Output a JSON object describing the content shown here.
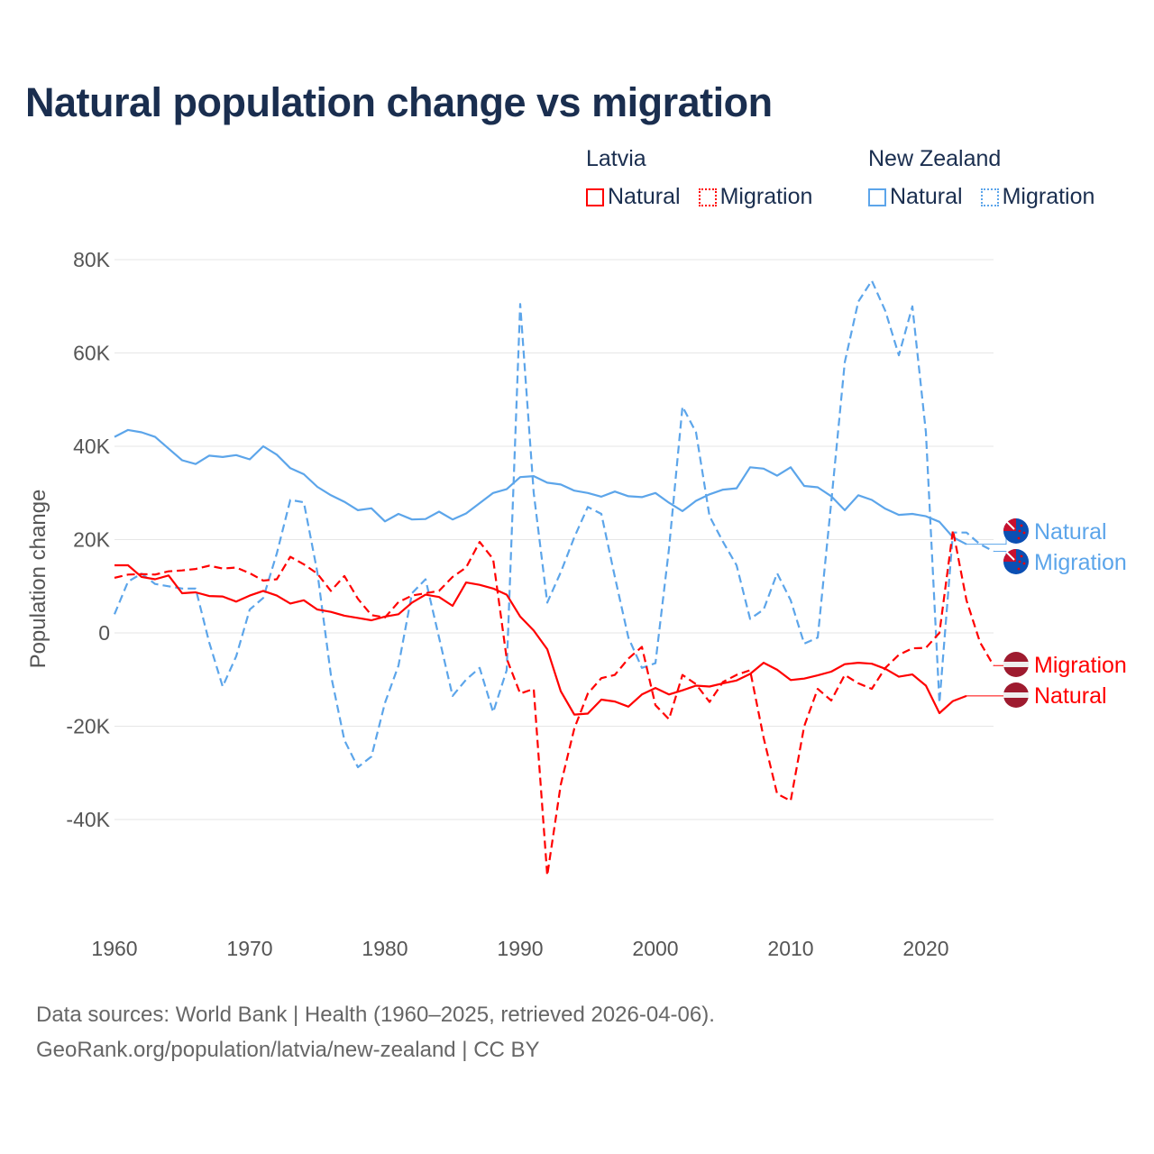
{
  "chart_data": {
    "type": "line",
    "title": "Natural population change vs migration",
    "xlabel": "",
    "ylabel": "Population change",
    "xlim": [
      1960,
      2025
    ],
    "ylim": [
      -55000,
      80000
    ],
    "x_ticks": [
      1960,
      1970,
      1980,
      1990,
      2000,
      2010,
      2020
    ],
    "x_tick_labels": [
      "1960",
      "1970",
      "1980",
      "1990",
      "2000",
      "2010",
      "2020"
    ],
    "y_ticks": [
      80000,
      60000,
      40000,
      20000,
      0,
      -20000,
      -40000
    ],
    "y_tick_labels": [
      "80K",
      "60K",
      "40K",
      "20K",
      "0",
      "-20K",
      "-40K"
    ],
    "grid": true,
    "legend_position": "top-right",
    "legend": [
      {
        "group": "Latvia",
        "items": [
          "Natural",
          "Migration"
        ]
      },
      {
        "group": "New Zealand",
        "items": [
          "Natural",
          "Migration"
        ]
      }
    ],
    "series": [
      {
        "name": "New Zealand Natural",
        "country": "New Zealand",
        "kind": "Natural",
        "color": "#5ca5ea",
        "dashed": false,
        "label": "Natural",
        "start_year": 1960,
        "values": [
          42000,
          43500,
          43000,
          42000,
          39500,
          37000,
          36200,
          38000,
          37700,
          38100,
          37200,
          40000,
          38200,
          35300,
          34000,
          31300,
          29500,
          28100,
          26300,
          26700,
          23900,
          25500,
          24300,
          24400,
          26000,
          24300,
          25600,
          27800,
          30000,
          30800,
          33400,
          33600,
          32200,
          31800,
          30500,
          30000,
          29200,
          30300,
          29300,
          29100,
          30000,
          27900,
          26100,
          28300,
          29700,
          30700,
          31000,
          35500,
          35200,
          33700,
          35500,
          31500,
          31200,
          29300,
          26300,
          29500,
          28500,
          26600,
          25300,
          25500,
          25000,
          23800,
          20500,
          19000
        ]
      },
      {
        "name": "New Zealand Migration",
        "country": "New Zealand",
        "kind": "Migration",
        "color": "#5ca5ea",
        "dashed": true,
        "label": "Migration",
        "start_year": 1960,
        "values": [
          4000,
          11000,
          12700,
          10500,
          10000,
          9500,
          9500,
          -2000,
          -11500,
          -5000,
          5000,
          7500,
          17000,
          28500,
          28000,
          13000,
          -9000,
          -23000,
          -28800,
          -26500,
          -15000,
          -7000,
          8500,
          11500,
          -1000,
          -13500,
          -10000,
          -7500,
          -17000,
          -8000,
          70500,
          30000,
          6500,
          13000,
          20500,
          27000,
          25500,
          12000,
          -1000,
          -7500,
          -6500,
          18000,
          48500,
          43000,
          25000,
          19500,
          14500,
          3000,
          5000,
          12800,
          7000,
          -2300,
          -1000,
          28000,
          58000,
          71000,
          75500,
          69000,
          59500,
          70000,
          43000,
          -15000,
          21500,
          21500,
          19000,
          17500
        ]
      },
      {
        "name": "Latvia Natural",
        "country": "Latvia",
        "kind": "Natural",
        "color": "#ff0000",
        "dashed": false,
        "label": "Natural",
        "start_year": 1960,
        "values": [
          14500,
          14500,
          12000,
          11500,
          12300,
          8500,
          8700,
          7900,
          7800,
          6700,
          8000,
          9000,
          8000,
          6300,
          7000,
          5000,
          4500,
          3700,
          3200,
          2700,
          3500,
          4000,
          6500,
          8200,
          7700,
          5800,
          10800,
          10300,
          9500,
          8200,
          3500,
          500,
          -3500,
          -12500,
          -17500,
          -17300,
          -14300,
          -14700,
          -15800,
          -13200,
          -11800,
          -13200,
          -12300,
          -11300,
          -11500,
          -10800,
          -10200,
          -8800,
          -6400,
          -7900,
          -10100,
          -9800,
          -9100,
          -8300,
          -6700,
          -6400,
          -6600,
          -7700,
          -9400,
          -8900,
          -11300,
          -17200,
          -14600,
          -13500
        ]
      },
      {
        "name": "Latvia Migration",
        "country": "Latvia",
        "kind": "Migration",
        "color": "#ff0000",
        "dashed": true,
        "label": "Migration",
        "start_year": 1960,
        "values": [
          11800,
          12500,
          12600,
          12500,
          13200,
          13400,
          13700,
          14400,
          13800,
          14000,
          12800,
          11200,
          11500,
          16300,
          14700,
          12700,
          9000,
          12200,
          7300,
          3800,
          3300,
          6600,
          8000,
          8500,
          9000,
          12000,
          14000,
          19500,
          15800,
          -5500,
          -13000,
          -12000,
          -52000,
          -32500,
          -20500,
          -13000,
          -9700,
          -9000,
          -5500,
          -3000,
          -15500,
          -18500,
          -9000,
          -11000,
          -14800,
          -10500,
          -9000,
          -8000,
          -22500,
          -34500,
          -36000,
          -20000,
          -12000,
          -14500,
          -9000,
          -10800,
          -12000,
          -7500,
          -4700,
          -3300,
          -3200,
          0,
          22000,
          7000,
          -2000,
          -7000
        ]
      }
    ]
  },
  "legend": {
    "latvia": {
      "group": "Latvia",
      "natural": "Natural",
      "migration": "Migration"
    },
    "nz": {
      "group": "New Zealand",
      "natural": "Natural",
      "migration": "Migration"
    }
  },
  "footer": {
    "line1": "Data sources: World Bank | Health (1960–2025, retrieved 2026-04-06).",
    "line2": "GeoRank.org/population/latvia/new-zealand | CC BY"
  }
}
